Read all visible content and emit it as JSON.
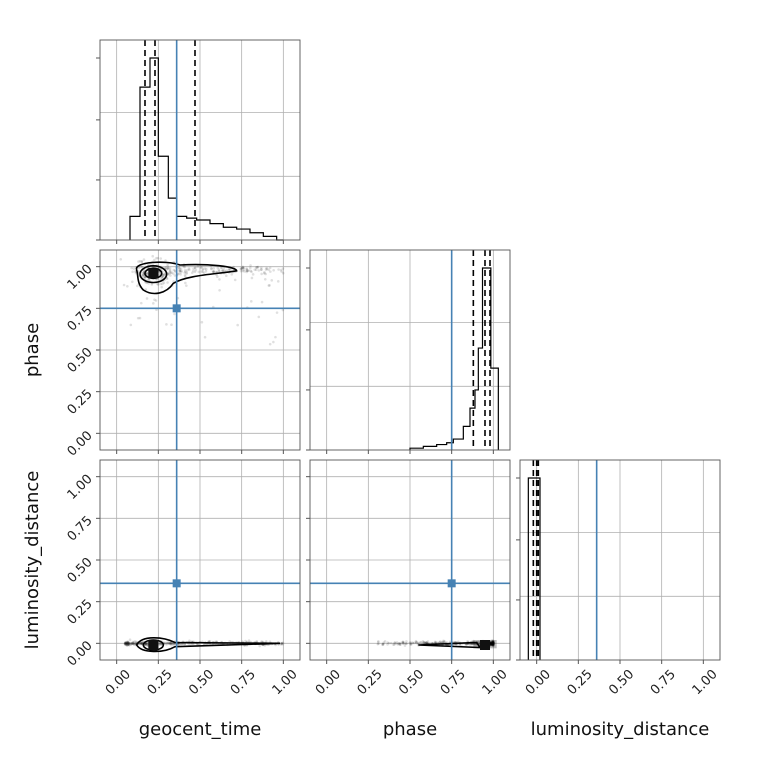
{
  "chart_data": {
    "type": "scatter",
    "subtype": "corner-plot",
    "parameters": [
      "geocent_time",
      "phase",
      "luminosity_distance"
    ],
    "axis_range": [
      -0.1,
      1.1
    ],
    "ticks": [
      0.0,
      0.25,
      0.5,
      0.75,
      1.0
    ],
    "tick_labels": [
      "0.00",
      "0.25",
      "0.50",
      "0.75",
      "1.00"
    ],
    "grid": true,
    "truth_color": "#4682b4",
    "truths": {
      "geocent_time": 0.36,
      "phase": 0.75,
      "luminosity_distance": 0.36
    },
    "histograms": {
      "geocent_time": {
        "bin_edges": [
          0.08,
          0.14,
          0.2,
          0.25,
          0.31,
          0.36,
          0.42,
          0.48,
          0.56,
          0.64,
          0.72,
          0.8,
          0.88,
          0.96,
          1.0
        ],
        "values": [
          0.13,
          0.84,
          1.0,
          0.46,
          0.23,
          0.13,
          0.12,
          0.11,
          0.09,
          0.07,
          0.06,
          0.04,
          0.02,
          0.0
        ],
        "quantiles": [
          0.17,
          0.23,
          0.47
        ]
      },
      "phase": {
        "bin_edges": [
          0.5,
          0.58,
          0.66,
          0.72,
          0.76,
          0.82,
          0.86,
          0.89,
          0.91,
          0.935,
          0.96,
          0.985,
          1.0,
          1.03
        ],
        "values": [
          0.01,
          0.02,
          0.03,
          0.04,
          0.06,
          0.13,
          0.23,
          0.33,
          0.56,
          1.0,
          1.0,
          0.45,
          0.45
        ],
        "quantiles": [
          0.88,
          0.95,
          0.98
        ]
      },
      "luminosity_distance": {
        "bin_edges": [
          -0.05,
          0.02
        ],
        "values": [
          1.0
        ],
        "quantiles": [
          -0.02,
          0.0,
          0.01
        ]
      }
    },
    "pairs": [
      {
        "x": "geocent_time",
        "y": "phase",
        "mode": [
          0.22,
          0.96
        ]
      },
      {
        "x": "geocent_time",
        "y": "luminosity_distance",
        "mode": [
          0.22,
          -0.01
        ]
      },
      {
        "x": "phase",
        "y": "luminosity_distance",
        "mode": [
          0.95,
          -0.01
        ]
      }
    ]
  }
}
